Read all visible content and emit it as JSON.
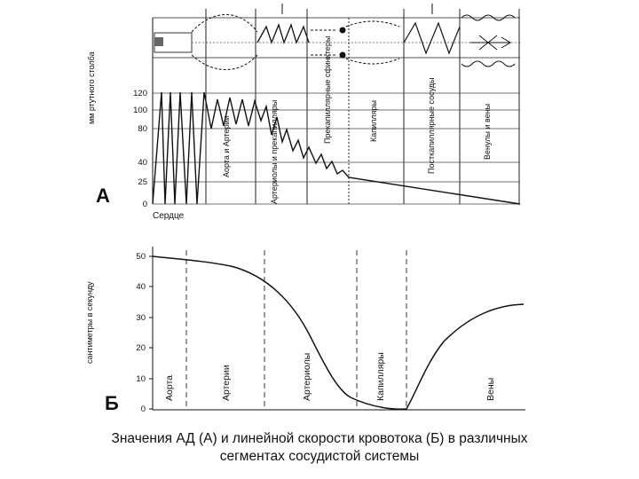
{
  "caption": {
    "line1": "Значения АД (А) и линейной скорости кровотока (Б)  в различных",
    "line2": "сегментах сосудистой системы"
  },
  "panel_a": {
    "letter": "А",
    "ylabel": "мм ртутного столба",
    "yticks": [
      "120",
      "100",
      "80",
      "40",
      "25",
      "0"
    ],
    "xlabel_heart": "Сердце",
    "segments": [
      "Аорта и Артерии",
      "Артериолы и прекапилляры",
      "Прекапиллярные сфинктеры",
      "Капилляры",
      "Посткапиллярные сосуды",
      "Венулы и вены"
    ]
  },
  "panel_b": {
    "letter": "Б",
    "ylabel": "сантиметры в секунду",
    "yticks": [
      "50",
      "40",
      "30",
      "20",
      "10",
      "0"
    ],
    "segments": [
      "Аорта",
      "Артерии",
      "Артериолы",
      "Капилляры",
      "Вены"
    ]
  },
  "chart_data": [
    {
      "type": "line",
      "title": "",
      "ylabel": "мм ртутного столба",
      "ylim": [
        0,
        125
      ],
      "y_ticks": [
        0,
        25,
        40,
        80,
        100,
        120
      ],
      "x_categories": [
        "Сердце",
        "Аорта и Артерии",
        "Артериолы и прекапилляры",
        "Прекапиллярные сфинктеры",
        "Капилляры",
        "Посткапиллярные сосуды",
        "Венулы и вены"
      ],
      "series": [
        {
          "values_by_segment": {
            "Сердце": {
              "systolic": 120,
              "diastolic": 0
            },
            "Аорта и Артерии": {
              "systolic": 120,
              "diastolic": 80
            },
            "Артериолы и прекапилляры": {
              "systolic": 95,
              "diastolic": 40
            },
            "Прекапиллярные сфинктеры": {
              "systolic": 45,
              "diastolic": 25
            },
            "Капилляры": {
              "start": 25,
              "end": 17
            },
            "Посткапиллярные сосуды": {
              "start": 17,
              "end": 8
            },
            "Венулы и вены": {
              "start": 8,
              "end": 0
            }
          }
        }
      ]
    },
    {
      "type": "line",
      "title": "",
      "ylabel": "сантиметры в секунду",
      "ylim": [
        0,
        50
      ],
      "y_ticks": [
        0,
        10,
        20,
        30,
        40,
        50
      ],
      "x_categories": [
        "Аорта",
        "Артерии",
        "Артериолы",
        "Капилляры",
        "Вены"
      ],
      "series": [
        {
          "points": [
            {
              "segment": "Аорта",
              "y": 50
            },
            {
              "segment": "Аорта/Артерии",
              "y": 48.5
            },
            {
              "segment": "Артерии",
              "y": 45
            },
            {
              "segment": "Артериолы",
              "y": 27
            },
            {
              "segment": "Артериолы/Капилляры",
              "y": 4
            },
            {
              "segment": "Капилляры",
              "y": 0.3
            },
            {
              "segment": "Вены (начало)",
              "y": 14
            },
            {
              "segment": "Вены",
              "y": 34
            }
          ]
        }
      ]
    }
  ]
}
